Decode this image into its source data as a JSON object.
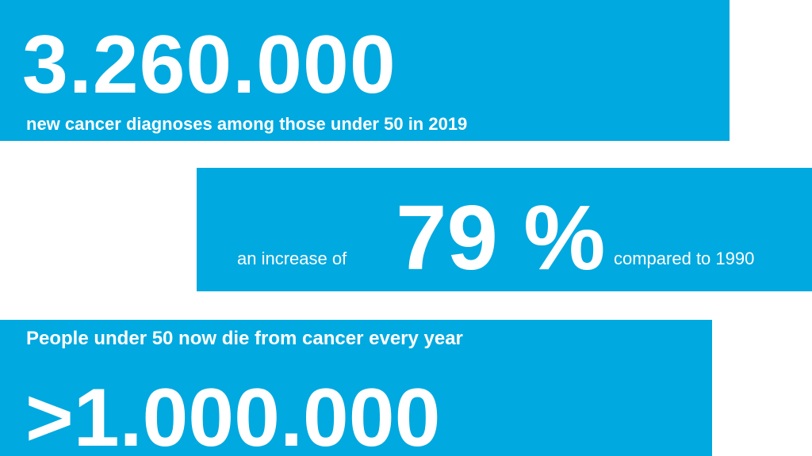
{
  "theme": {
    "panel_color": "#00a9e0",
    "text_color": "#ffffff",
    "background": "#ffffff"
  },
  "stat_1": {
    "number": "3.260.000",
    "caption": "new cancer diagnoses among those under 50 in 2019"
  },
  "stat_2": {
    "prefix": "an increase of",
    "number": "79 %",
    "suffix": "compared to 1990"
  },
  "stat_3": {
    "caption": "People under 50 now die from cancer every year",
    "number": ">1.000.000"
  }
}
